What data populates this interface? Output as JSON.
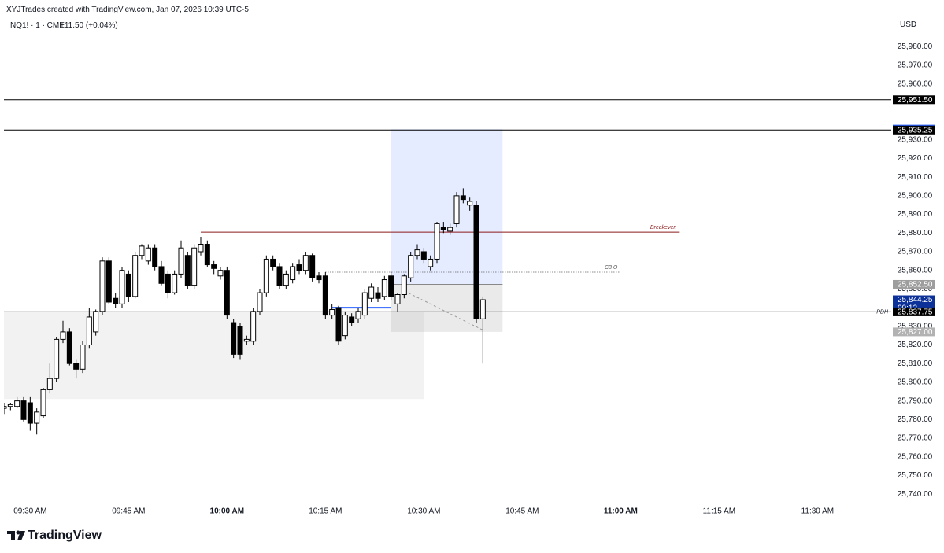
{
  "header": {
    "title": "XYJTrades created with TradingView.com, Jan 07, 2026 10:39 UTC-5",
    "symbol": "NQ1! · 1 · CME",
    "change": "+11.50 (+0.04%)",
    "currency": "USD"
  },
  "footer": {
    "brand": "TradingView"
  },
  "chart_data": {
    "type": "candlestick",
    "up_color": "#ffffff",
    "down_color": "#000000",
    "xlim": [
      "09:26 AM",
      "11:41 AM"
    ],
    "xticks": [
      "09:30 AM",
      "09:45 AM",
      "10:00 AM",
      "10:15 AM",
      "10:30 AM",
      "10:45 AM",
      "11:00 AM",
      "11:15 AM",
      "11:30 AM"
    ],
    "ylim": [
      25735,
      25986
    ],
    "yticks": [
      {
        "value": 25740,
        "label": "25,740.00"
      },
      {
        "value": 25750,
        "label": "25,750.00"
      },
      {
        "value": 25760,
        "label": "25,760.00"
      },
      {
        "value": 25770,
        "label": "25,770.00"
      },
      {
        "value": 25780,
        "label": "25,780.00"
      },
      {
        "value": 25790,
        "label": "25,790.00"
      },
      {
        "value": 25800,
        "label": "25,800.00"
      },
      {
        "value": 25810,
        "label": "25,810.00"
      },
      {
        "value": 25820,
        "label": "25,820.00"
      },
      {
        "value": 25830,
        "label": "25,830.00"
      },
      {
        "value": 25850,
        "label": "25,850.00"
      },
      {
        "value": 25860,
        "label": "25,860.00"
      },
      {
        "value": 25870,
        "label": "25,870.00"
      },
      {
        "value": 25880,
        "label": "25,880.00"
      },
      {
        "value": 25890,
        "label": "25,890.00"
      },
      {
        "value": 25900,
        "label": "25,900.00"
      },
      {
        "value": 25910,
        "label": "25,910.00"
      },
      {
        "value": 25920,
        "label": "25,920.00"
      },
      {
        "value": 25930,
        "label": "25,930.00"
      },
      {
        "value": 25960,
        "label": "25,960.00"
      },
      {
        "value": 25970,
        "label": "25,970.00"
      },
      {
        "value": 25980,
        "label": "25,980.00"
      }
    ],
    "x": [
      "09:26 AM",
      "09:27 AM",
      "09:28 AM",
      "09:29 AM",
      "09:30 AM",
      "09:31 AM",
      "09:32 AM",
      "09:33 AM",
      "09:34 AM",
      "09:35 AM",
      "09:36 AM",
      "09:37 AM",
      "09:38 AM",
      "09:39 AM",
      "09:40 AM",
      "09:41 AM",
      "09:42 AM",
      "09:43 AM",
      "09:44 AM",
      "09:45 AM",
      "09:46 AM",
      "09:47 AM",
      "09:48 AM",
      "09:49 AM",
      "09:50 AM",
      "09:51 AM",
      "09:52 AM",
      "09:53 AM",
      "09:54 AM",
      "09:55 AM",
      "09:56 AM",
      "09:57 AM",
      "09:58 AM",
      "09:59 AM",
      "10:00 AM",
      "10:01 AM",
      "10:02 AM",
      "10:03 AM",
      "10:04 AM",
      "10:05 AM",
      "10:06 AM",
      "10:07 AM",
      "10:08 AM",
      "10:09 AM",
      "10:10 AM",
      "10:11 AM",
      "10:12 AM",
      "10:13 AM",
      "10:14 AM",
      "10:15 AM",
      "10:16 AM",
      "10:17 AM",
      "10:18 AM",
      "10:19 AM",
      "10:20 AM",
      "10:21 AM",
      "10:22 AM",
      "10:23 AM",
      "10:24 AM",
      "10:25 AM",
      "10:26 AM",
      "10:27 AM",
      "10:28 AM",
      "10:29 AM",
      "10:30 AM",
      "10:31 AM",
      "10:32 AM",
      "10:33 AM",
      "10:34 AM",
      "10:35 AM",
      "10:36 AM",
      "10:37 AM",
      "10:38 AM",
      "10:39 AM"
    ],
    "open": [
      25786,
      25787,
      25787,
      25790,
      25789,
      25778,
      25782,
      25796,
      25802,
      25823,
      25827,
      25810,
      25807,
      25820,
      25827,
      25838,
      25865,
      25845,
      25842,
      25858,
      25846,
      25868,
      25865,
      25872,
      25862,
      25858,
      25848,
      25858,
      25868,
      25852,
      25870,
      25874,
      25863,
      25857,
      25860,
      25832,
      25830,
      25822,
      25822,
      25838,
      25848,
      25866,
      25862,
      25852,
      25855,
      25863,
      25860,
      25868,
      25857,
      25857,
      25836,
      25840,
      25825,
      25835,
      25834,
      25836,
      25845,
      25848,
      25846,
      25857,
      25842,
      25847,
      25856,
      25868,
      25870,
      25862,
      25866,
      25883,
      25881,
      25885,
      25900,
      25895,
      25895,
      25834
    ],
    "high": [
      25789,
      25789,
      25792,
      25792,
      25792,
      25786,
      25797,
      25810,
      25824,
      25833,
      25829,
      25812,
      25822,
      25840,
      25839,
      25867,
      25867,
      25848,
      25862,
      25860,
      25870,
      25874,
      25874,
      25874,
      25865,
      25860,
      25860,
      25876,
      25870,
      25874,
      25878,
      25876,
      25865,
      25862,
      25862,
      25834,
      25832,
      25825,
      25840,
      25850,
      25868,
      25868,
      25864,
      25860,
      25864,
      25866,
      25870,
      25869,
      25859,
      25859,
      25842,
      25841,
      25838,
      25837,
      25840,
      25850,
      25853,
      25851,
      25857,
      25859,
      25848,
      25858,
      25870,
      25874,
      25872,
      25868,
      25886,
      25886,
      25885,
      25902,
      25904,
      25899,
      25897,
      25846
    ],
    "low": [
      25783,
      25785,
      25786,
      25779,
      25774,
      25772,
      25781,
      25794,
      25800,
      25821,
      25809,
      25802,
      25805,
      25818,
      25825,
      25836,
      25842,
      25840,
      25840,
      25843,
      25845,
      25866,
      25863,
      25860,
      25852,
      25845,
      25847,
      25856,
      25850,
      25850,
      25868,
      25862,
      25858,
      25855,
      25834,
      25813,
      25812,
      25820,
      25820,
      25836,
      25846,
      25860,
      25850,
      25850,
      25853,
      25858,
      25858,
      25854,
      25853,
      25834,
      25834,
      25820,
      25823,
      25830,
      25832,
      25834,
      25843,
      25843,
      25844,
      25844,
      25838,
      25845,
      25854,
      25866,
      25864,
      25860,
      25864,
      25880,
      25879,
      25883,
      25896,
      25892,
      25832,
      25810
    ],
    "close": [
      25787,
      25788,
      25790,
      25780,
      25778,
      25784,
      25796,
      25802,
      25823,
      25827,
      25810,
      25807,
      25820,
      25835,
      25838,
      25865,
      25843,
      25842,
      25860,
      25846,
      25868,
      25873,
      25872,
      25862,
      25853,
      25848,
      25858,
      25872,
      25852,
      25872,
      25874,
      25863,
      25861,
      25860,
      25836,
      25815,
      25815,
      25823,
      25838,
      25848,
      25866,
      25862,
      25852,
      25858,
      25862,
      25860,
      25868,
      25856,
      25855,
      25836,
      25839,
      25822,
      25836,
      25832,
      25838,
      25848,
      25851,
      25845,
      25855,
      25846,
      25847,
      25857,
      25868,
      25871,
      25866,
      25866,
      25885,
      25882,
      25883,
      25900,
      25898,
      25897,
      25834,
      25844.25
    ],
    "levels": [
      {
        "value": 25951.5,
        "label": "25,951.50",
        "color": "#000000"
      },
      {
        "value": 25935.25,
        "label": "25,935.25",
        "color": "#000000"
      },
      {
        "value": 25837.75,
        "label": "25,837.75",
        "color": "#000000",
        "text": "PDH"
      }
    ],
    "price_labels": [
      {
        "value": 25935.75,
        "label": "25,935.75",
        "color": "#2962ff"
      },
      {
        "value": 25852.5,
        "label": "25,852.50",
        "color": "#9e9e9e"
      },
      {
        "value": 25827,
        "label": "25,827.00",
        "color": "#b2b2b2"
      }
    ],
    "last_price": {
      "value": 25844.25,
      "label": "25,844.25",
      "countdown": "00:12",
      "color": "#0c3299"
    },
    "position": {
      "start": "10:25 AM",
      "end": "10:42 AM",
      "entry": 25852.5,
      "target": 25935.75,
      "stop": 25827
    },
    "zone": {
      "start": "09:26 AM",
      "end": "10:30 AM",
      "top": 25837.75,
      "bottom": 25791
    },
    "annotations": [
      {
        "text": "Breakeven",
        "value": 25880.5,
        "start": "09:56 AM",
        "end": "11:09 AM",
        "color": "#8b1a1a",
        "style": "solid"
      },
      {
        "text": "C3 O",
        "value": 25859,
        "start": "10:15 AM",
        "end": "11:00 AM",
        "color": "#555555",
        "style": "dotted"
      }
    ],
    "segment": {
      "value": 25840,
      "start": "10:16 AM",
      "end": "10:25 AM",
      "color": "#2962ff"
    },
    "dashed": {
      "x": [
        "10:27 AM",
        "10:39 AM"
      ],
      "values": [
        25849,
        25828
      ]
    }
  }
}
